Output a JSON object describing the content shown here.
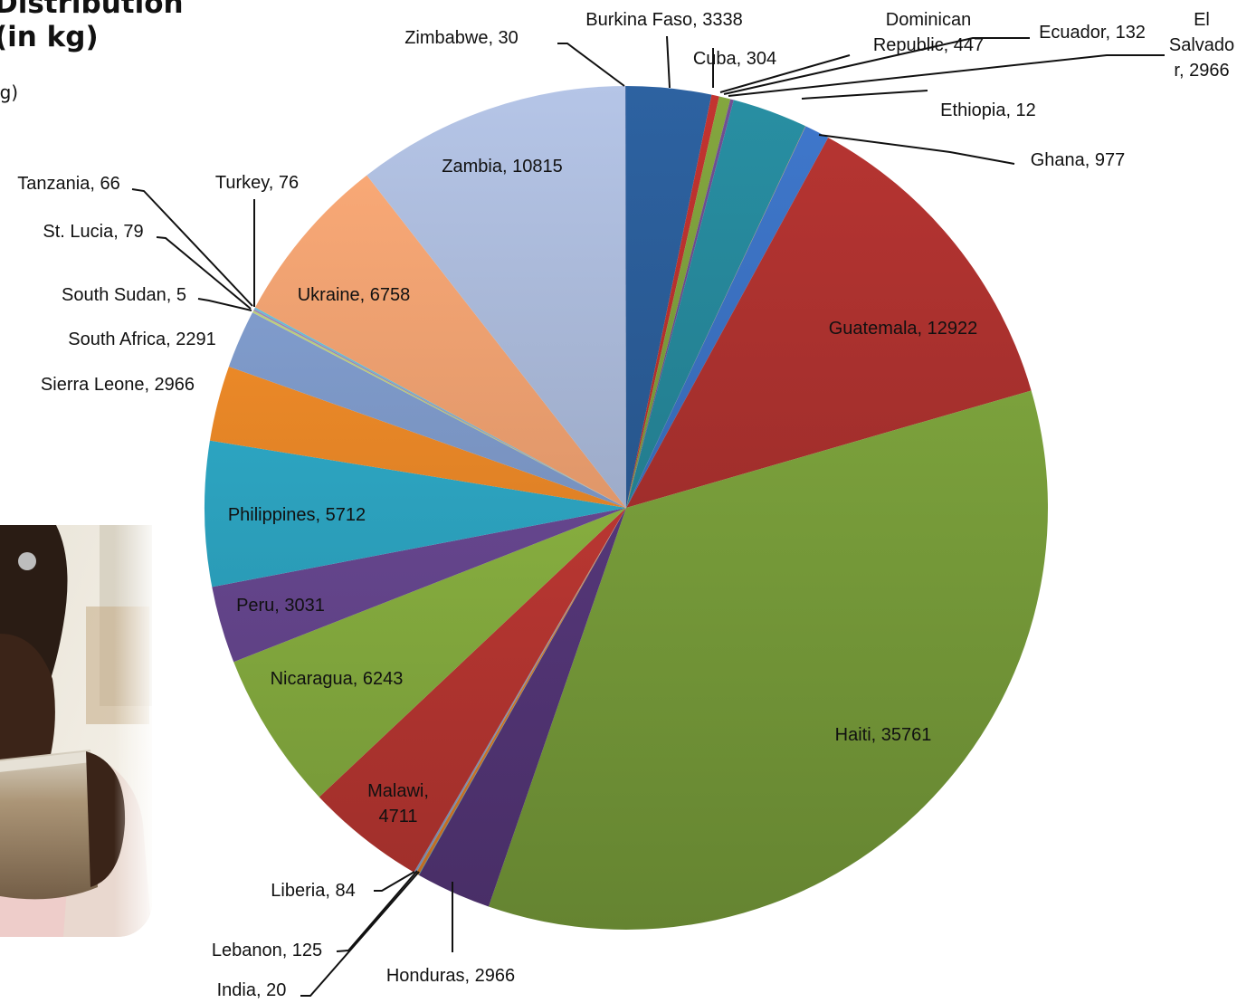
{
  "title": {
    "line1": "Distribution",
    "line2": "(in kg)",
    "subtitle": "kg)"
  },
  "photo": {
    "icon": "photo-girl-with-cup",
    "alt": ""
  },
  "chart_data": {
    "type": "pie",
    "title": "",
    "start_angle_deg": 0,
    "direction": "clockwise",
    "slices": [
      {
        "label": "Burkina Faso",
        "value": 3338,
        "color": "#2a5b95"
      },
      {
        "label": "Cuba",
        "value": 304,
        "color": "#b5302c"
      },
      {
        "label": "Dominican Republic",
        "value": 447,
        "color": "#7a9b3a"
      },
      {
        "label": "Ecuador",
        "value": 132,
        "color": "#6a4a8a"
      },
      {
        "label": "El Salvador",
        "value": 2966,
        "color": "#258497"
      },
      {
        "label": "Ethiopia",
        "value": 12,
        "color": "#e0761e"
      },
      {
        "label": "Ghana",
        "value": 977,
        "color": "#3a6fbe"
      },
      {
        "label": "Guatemala",
        "value": 12922,
        "color": "#aa312e"
      },
      {
        "label": "Haiti",
        "value": 35761,
        "color": "#7ea53d"
      },
      {
        "label": "Honduras",
        "value": 2966,
        "color": "#5a3a80"
      },
      {
        "label": "India",
        "value": 20,
        "color": "#2a9ab8"
      },
      {
        "label": "Lebanon",
        "value": 125,
        "color": "#e8852a"
      },
      {
        "label": "Liberia",
        "value": 84,
        "color": "#8ea6cf"
      },
      {
        "label": "Malawi",
        "value": 4711,
        "color": "#c43a35"
      },
      {
        "label": "Nicaragua",
        "value": 6243,
        "color": "#8fb843"
      },
      {
        "label": "Peru",
        "value": 3031,
        "color": "#6b4a96"
      },
      {
        "label": "Philippines",
        "value": 5712,
        "color": "#2eaac8"
      },
      {
        "label": "Sierra Leone",
        "value": 2966,
        "color": "#f08a28"
      },
      {
        "label": "South Africa",
        "value": 2291,
        "color": "#7f9bcb"
      },
      {
        "label": "South Sudan",
        "value": 5,
        "color": "#d07070"
      },
      {
        "label": "St. Lucia",
        "value": 79,
        "color": "#b9cf7a"
      },
      {
        "label": "Tanzania",
        "value": 66,
        "color": "#9c86b8"
      },
      {
        "label": "Turkey",
        "value": 76,
        "color": "#68bcd6"
      },
      {
        "label": "Ukraine",
        "value": 6758,
        "color": "#f0a070"
      },
      {
        "label": "Zambia",
        "value": 10815,
        "color": "#a8b6d6"
      },
      {
        "label": "Zimbabwe",
        "value": 30,
        "color": "#2c5590"
      }
    ],
    "data_labels": [
      {
        "text": "Burkina Faso, 3338"
      },
      {
        "text": "Cuba, 304"
      },
      {
        "lines": [
          "Dominican",
          "Republic, 447"
        ]
      },
      {
        "text": "Ecuador, 132"
      },
      {
        "lines": [
          "El",
          "Salvado",
          "r, 2966"
        ]
      },
      {
        "text": "Ethiopia, 12"
      },
      {
        "text": "Ghana, 977"
      },
      {
        "text": "Guatemala, 12922"
      },
      {
        "text": "Haiti, 35761"
      },
      {
        "text": "Honduras, 2966"
      },
      {
        "text": "India, 20"
      },
      {
        "text": "Lebanon, 125"
      },
      {
        "text": "Liberia, 84"
      },
      {
        "lines": [
          "Malawi,",
          "4711"
        ]
      },
      {
        "text": "Nicaragua, 6243"
      },
      {
        "text": "Peru, 3031"
      },
      {
        "text": "Philippines, 5712"
      },
      {
        "text": "Sierra Leone, 2966"
      },
      {
        "text": "South Africa, 2291"
      },
      {
        "text": "South Sudan, 5"
      },
      {
        "text": "St. Lucia, 79"
      },
      {
        "text": "Tanzania, 66"
      },
      {
        "text": "Turkey, 76"
      },
      {
        "text": "Ukraine, 6758"
      },
      {
        "text": "Zambia, 10815"
      },
      {
        "text": "Zimbabwe, 30"
      }
    ]
  }
}
